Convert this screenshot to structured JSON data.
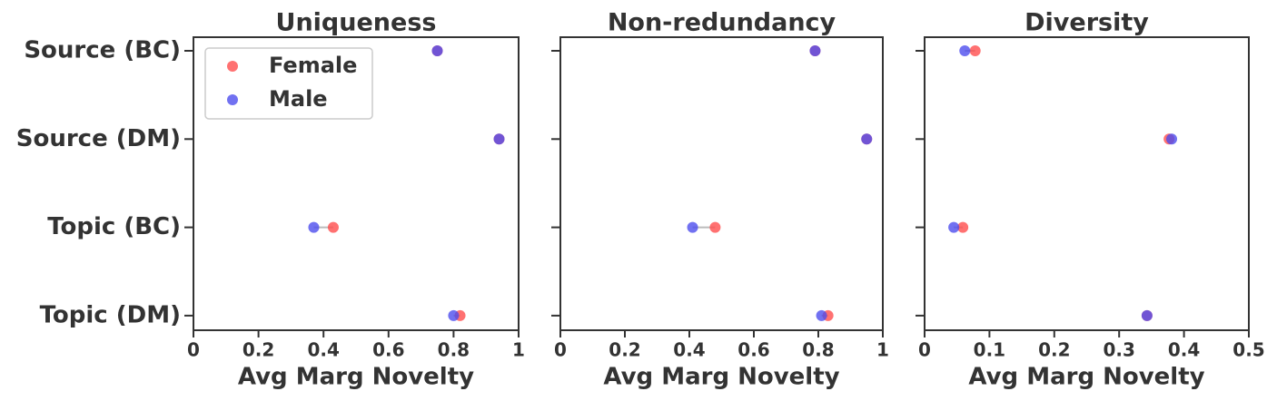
{
  "chart_data": [
    {
      "type": "dot",
      "title": "Uniqueness",
      "x_label": "Avg Marg Novelty",
      "categories": [
        "Source (BC)",
        "Source (DM)",
        "Topic (BC)",
        "Topic (DM)"
      ],
      "series": [
        {
          "name": "Female",
          "color": "#ff4d4d",
          "values": [
            0.75,
            0.94,
            0.43,
            0.82
          ]
        },
        {
          "name": "Male",
          "color": "#4d4dee",
          "values": [
            0.75,
            0.94,
            0.37,
            0.8
          ]
        }
      ],
      "xlim": [
        0,
        1
      ],
      "xticks": [
        0,
        0.2,
        0.4,
        0.6,
        0.8,
        1
      ],
      "legend": "upper left"
    },
    {
      "type": "dot",
      "title": "Non-redundancy",
      "x_label": "Avg Marg Novelty",
      "series": [
        {
          "color": "#ff4d4d",
          "values": [
            0.79,
            0.95,
            0.48,
            0.83
          ]
        },
        {
          "color": "#4d4dee",
          "values": [
            0.79,
            0.95,
            0.41,
            0.81
          ]
        }
      ],
      "xlim": [
        0,
        1
      ],
      "xticks": [
        0,
        0.2,
        0.4,
        0.6,
        0.8,
        1
      ]
    },
    {
      "type": "dot",
      "title": "Diversity",
      "x_label": "Avg Marg Novelty",
      "series": [
        {
          "color": "#ff4d4d",
          "values": [
            0.078,
            0.377,
            0.059,
            0.343
          ]
        },
        {
          "color": "#4d4dee",
          "values": [
            0.062,
            0.381,
            0.045,
            0.343
          ]
        }
      ],
      "xlim": [
        0,
        0.5
      ],
      "xticks": [
        0,
        0.1,
        0.2,
        0.3,
        0.4,
        0.5
      ]
    }
  ]
}
